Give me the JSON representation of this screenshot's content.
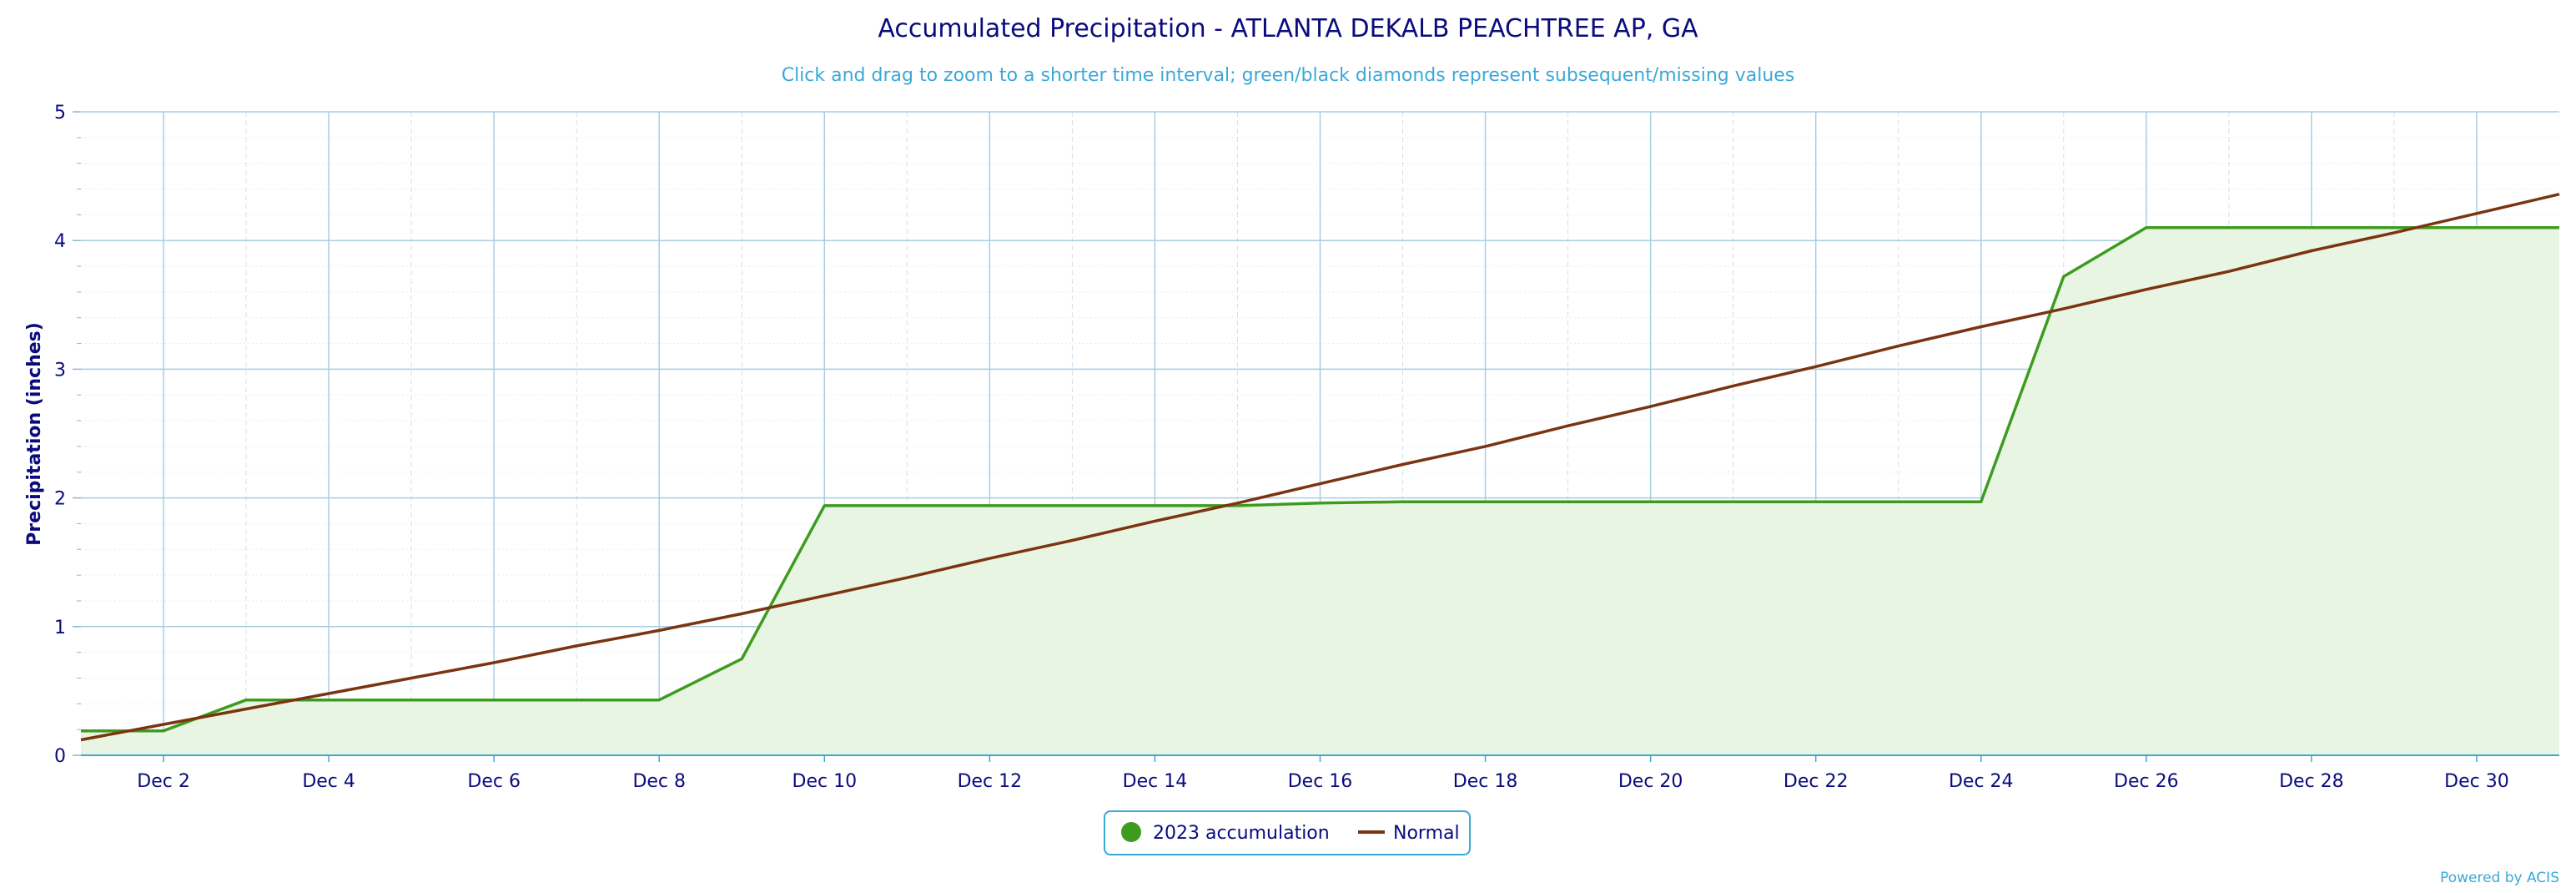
{
  "chart_data": {
    "type": "area",
    "title": "Accumulated Precipitation - ATLANTA DEKALB PEACHTREE AP, GA",
    "subtitle": "Click and drag to zoom to a shorter time interval; green/black diamonds represent subsequent/missing values",
    "ylabel": "Precipitation (inches)",
    "xlabel": "",
    "ylim": [
      0,
      5
    ],
    "yticks": [
      0,
      1,
      2,
      3,
      4,
      5
    ],
    "xlim": [
      1,
      31
    ],
    "xticks": [
      2,
      4,
      6,
      8,
      10,
      12,
      14,
      16,
      18,
      20,
      22,
      24,
      26,
      28,
      30
    ],
    "xtick_labels": [
      "Dec 2",
      "Dec 4",
      "Dec 6",
      "Dec 8",
      "Dec 10",
      "Dec 12",
      "Dec 14",
      "Dec 16",
      "Dec 18",
      "Dec 20",
      "Dec 22",
      "Dec 24",
      "Dec 26",
      "Dec 28",
      "Dec 30"
    ],
    "grid": true,
    "legend_position": "bottom-center",
    "series": [
      {
        "name": "2023 accumulation",
        "style": "area",
        "color": "#3d9c1f",
        "fill": "#e8f5e2",
        "x": [
          1,
          2,
          3,
          4,
          5,
          6,
          7,
          8,
          9,
          10,
          11,
          12,
          13,
          14,
          15,
          16,
          17,
          18,
          19,
          20,
          21,
          22,
          23,
          24,
          25,
          26,
          27,
          28,
          29,
          30,
          31
        ],
        "values": [
          0.19,
          0.19,
          0.43,
          0.43,
          0.43,
          0.43,
          0.43,
          0.43,
          0.75,
          1.94,
          1.94,
          1.94,
          1.94,
          1.94,
          1.94,
          1.96,
          1.97,
          1.97,
          1.97,
          1.97,
          1.97,
          1.97,
          1.97,
          1.97,
          3.72,
          4.1,
          4.1,
          4.1,
          4.1,
          4.1,
          4.1
        ]
      },
      {
        "name": "Normal",
        "style": "line",
        "color": "#7a3411",
        "x": [
          1,
          2,
          3,
          4,
          5,
          6,
          7,
          8,
          9,
          10,
          11,
          12,
          13,
          14,
          15,
          16,
          17,
          18,
          19,
          20,
          21,
          22,
          23,
          24,
          25,
          26,
          27,
          28,
          29,
          30,
          31
        ],
        "values": [
          0.12,
          0.24,
          0.36,
          0.48,
          0.6,
          0.72,
          0.85,
          0.97,
          1.1,
          1.24,
          1.38,
          1.53,
          1.67,
          1.82,
          1.96,
          2.11,
          2.26,
          2.4,
          2.56,
          2.71,
          2.87,
          3.02,
          3.18,
          3.33,
          3.47,
          3.62,
          3.76,
          3.92,
          4.06,
          4.21,
          4.36
        ]
      }
    ],
    "credit": "Powered by ACIS"
  }
}
